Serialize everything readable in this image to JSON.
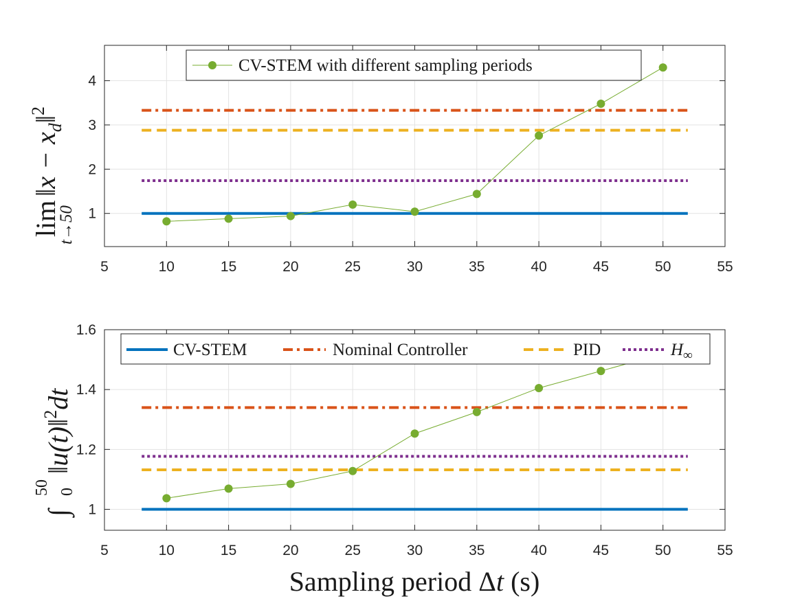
{
  "chart_data": [
    {
      "type": "line",
      "title": "",
      "xlabel": "",
      "ylabel": "lim_{t→50} ||x − x_d||²",
      "ylabel_parts": {
        "op": "lim",
        "sub": "t→50",
        "expr": "‖x − x",
        "expr_sub": "d",
        "expr_end": "‖",
        "sup": "2"
      },
      "xlim": [
        5,
        55
      ],
      "ylim": [
        0.25,
        4.8
      ],
      "xticks": [
        5,
        10,
        15,
        20,
        25,
        30,
        35,
        40,
        45,
        50,
        55
      ],
      "yticks": [
        1,
        2,
        3,
        4
      ],
      "grid": true,
      "legend": {
        "placement": "top",
        "entries": [
          "CV-STEM with different sampling periods"
        ]
      },
      "series": [
        {
          "name": "CV-STEM with different sampling periods",
          "style": "line-marker",
          "color": "#77AC30",
          "x": [
            10,
            15,
            20,
            25,
            30,
            35,
            40,
            45,
            50
          ],
          "y": [
            0.82,
            0.88,
            0.94,
            1.2,
            1.04,
            1.44,
            2.76,
            3.48,
            4.3
          ]
        },
        {
          "name": "Nominal Controller",
          "style": "dashdot",
          "color": "#D95319",
          "x": [
            8,
            52
          ],
          "y": [
            3.33,
            3.33
          ]
        },
        {
          "name": "PID",
          "style": "dashed",
          "color": "#EDB120",
          "x": [
            8,
            52
          ],
          "y": [
            2.88,
            2.88
          ]
        },
        {
          "name": "H∞",
          "style": "dotted",
          "color": "#7E2F8E",
          "x": [
            8,
            52
          ],
          "y": [
            1.74,
            1.74
          ]
        },
        {
          "name": "CV-STEM",
          "style": "solid",
          "color": "#0072BD",
          "x": [
            8,
            52
          ],
          "y": [
            1.0,
            1.0
          ]
        }
      ]
    },
    {
      "type": "line",
      "title": "",
      "xlabel": "Sampling period Δt (s)",
      "ylabel": "∫_0^50 ||u(t)||² dt",
      "ylabel_parts": {
        "op": "∫",
        "sub": "0",
        "sup_op": "50",
        "expr": "‖u(t)‖",
        "sup": "2",
        "end": "dt"
      },
      "xlim": [
        5,
        55
      ],
      "ylim": [
        0.93,
        1.6
      ],
      "xticks": [
        5,
        10,
        15,
        20,
        25,
        30,
        35,
        40,
        45,
        50,
        55
      ],
      "yticks": [
        1,
        1.2,
        1.4,
        1.6
      ],
      "grid": true,
      "legend": {
        "placement": "top",
        "entries": [
          "CV-STEM",
          "Nominal Controller",
          "PID",
          "H∞"
        ]
      },
      "series": [
        {
          "name": "CV-STEM with different sampling periods",
          "style": "line-marker",
          "color": "#77AC30",
          "x": [
            10,
            15,
            20,
            25,
            30,
            35,
            40,
            45,
            50
          ],
          "y": [
            1.037,
            1.069,
            1.085,
            1.128,
            1.253,
            1.325,
            1.405,
            1.462,
            1.52
          ]
        },
        {
          "name": "Nominal Controller",
          "style": "dashdot",
          "color": "#D95319",
          "x": [
            8,
            52
          ],
          "y": [
            1.34,
            1.34
          ]
        },
        {
          "name": "PID",
          "style": "dashed",
          "color": "#EDB120",
          "x": [
            8,
            52
          ],
          "y": [
            1.132,
            1.132
          ]
        },
        {
          "name": "H∞",
          "style": "dotted",
          "color": "#7E2F8E",
          "x": [
            8,
            52
          ],
          "y": [
            1.177,
            1.177
          ]
        },
        {
          "name": "CV-STEM",
          "style": "solid",
          "color": "#0072BD",
          "x": [
            8,
            52
          ],
          "y": [
            1.0,
            1.0
          ]
        }
      ]
    }
  ],
  "legend_labels": {
    "top": "CV-STEM with different sampling periods",
    "cv_stem": "CV-STEM",
    "nominal": "Nominal Controller",
    "pid": "PID",
    "hinf_script": "H",
    "hinf_sub": "∞"
  },
  "xlabel": {
    "pre": "Sampling period ",
    "delta": "Δ",
    "t": "t",
    "post": " (s)"
  }
}
